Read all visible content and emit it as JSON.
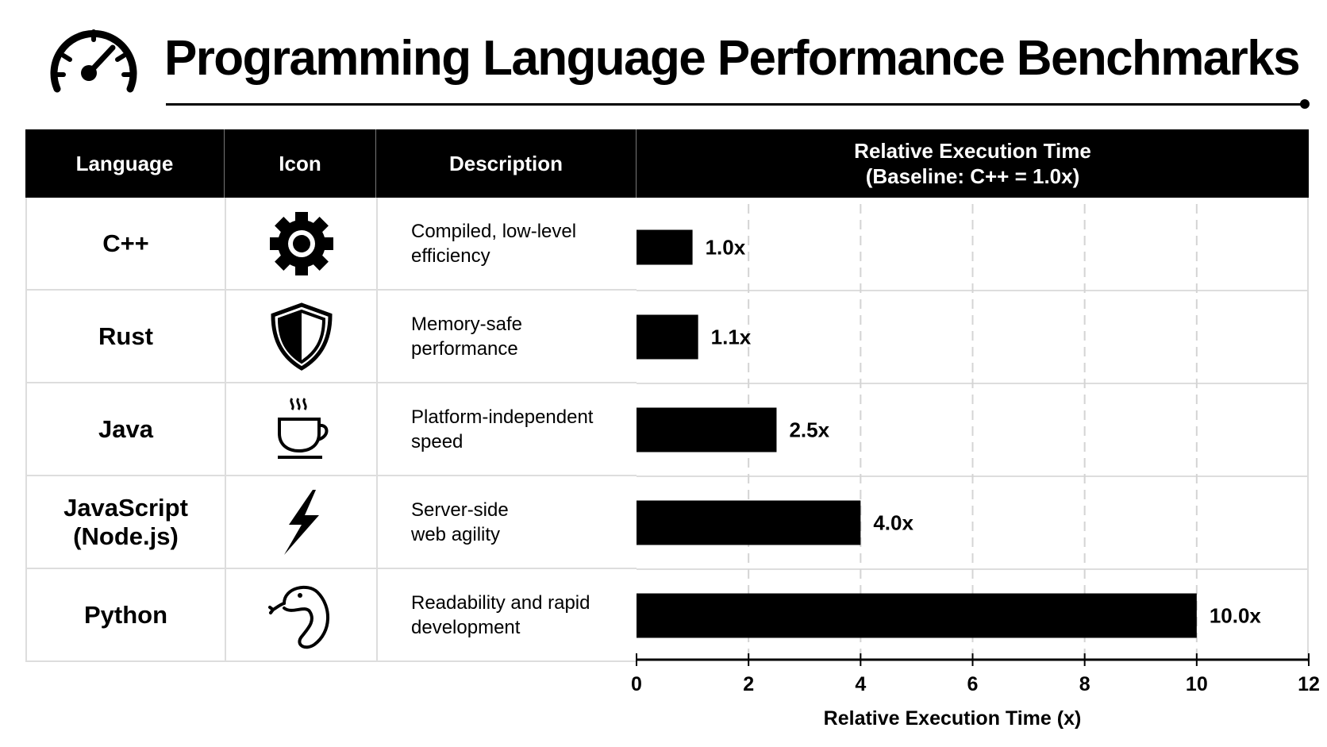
{
  "title": "Programming Language Performance Benchmarks",
  "title_icon": "speedometer-icon",
  "table": {
    "headers": [
      "Language",
      "Icon",
      "Description"
    ],
    "chart_header_line1": "Relative Execution Time",
    "chart_header_line2": "(Baseline: C++ = 1.0x)",
    "rows": [
      {
        "language": "C++",
        "icon": "gear-icon",
        "desc1": "Compiled, low-level",
        "desc2": "efficiency"
      },
      {
        "language": "Rust",
        "icon": "shield-icon",
        "desc1": "Memory-safe",
        "desc2": "performance"
      },
      {
        "language": "Java",
        "icon": "coffee-cup-icon",
        "desc1": "Platform-independent",
        "desc2": "speed"
      },
      {
        "language": "JavaScript (Node.js)",
        "lang1": "JavaScript",
        "lang2": "(Node.js)",
        "icon": "lightning-bolt-icon",
        "desc1": "Server-side",
        "desc2": "web agility"
      },
      {
        "language": "Python",
        "icon": "snake-icon",
        "desc1": "Readability and rapid",
        "desc2": "development"
      }
    ]
  },
  "chart_data": {
    "type": "bar",
    "orientation": "horizontal",
    "categories": [
      "C++",
      "Rust",
      "Java",
      "JavaScript (Node.js)",
      "Python"
    ],
    "values": [
      1.0,
      1.1,
      2.5,
      4.0,
      10.0
    ],
    "data_labels": [
      "1.0x",
      "1.1x",
      "2.5x",
      "4.0x",
      "10.0x"
    ],
    "xlabel": "Relative Execution Time (x)",
    "xlim": [
      0,
      12
    ],
    "xticks": [
      0,
      2,
      4,
      6,
      8,
      10,
      12
    ],
    "grid": "vertical dashed",
    "bar_color": "#000000"
  }
}
